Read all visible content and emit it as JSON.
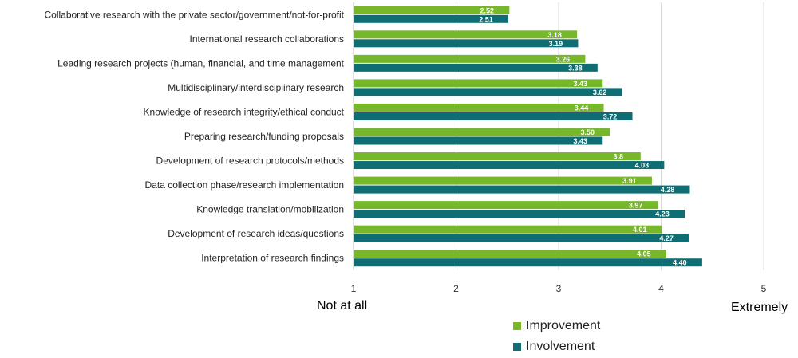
{
  "chart_data": {
    "type": "bar",
    "orientation": "horizontal",
    "title": "",
    "categories": [
      "Collaborative research with the private sector/government/not-for-profit",
      "International research collaborations",
      "Leading research projects (human, financial, and time management",
      "Multidisciplinary/interdisciplinary research",
      "Knowledge of research integrity/ethical conduct",
      "Preparing research/funding proposals",
      "Development of research protocols/methods",
      "Data collection phase/research implementation",
      "Knowledge translation/mobilization",
      "Development of research ideas/questions",
      "Interpretation of research findings"
    ],
    "series": [
      {
        "name": "Improvement",
        "color": "#76b82a",
        "values": [
          2.52,
          3.18,
          3.26,
          3.43,
          3.44,
          3.5,
          3.8,
          3.91,
          3.97,
          4.01,
          4.05
        ],
        "labels": [
          "2.52",
          "3.18",
          "3.26",
          "3.43",
          "3.44",
          "3.50",
          "3.8",
          "3.91",
          "3.97",
          "4.01",
          "4.05"
        ]
      },
      {
        "name": "Involvement",
        "color": "#0e6e74",
        "values": [
          2.51,
          3.19,
          3.38,
          3.62,
          3.72,
          3.43,
          4.03,
          4.28,
          4.23,
          4.27,
          4.4
        ],
        "labels": [
          "2.51",
          "3.19",
          "3.38",
          "3.62",
          "3.72",
          "3.43",
          "4.03",
          "4.28",
          "4.23",
          "4.27",
          "4.40"
        ]
      }
    ],
    "xlim": [
      1,
      5
    ],
    "xticks": [
      "1",
      "2",
      "3",
      "4",
      "5"
    ],
    "xlabel": "",
    "ylabel": "",
    "grid": true,
    "legend_position": "bottom",
    "scale_anchors": {
      "low": "Not at all",
      "high": "Extremely"
    }
  }
}
